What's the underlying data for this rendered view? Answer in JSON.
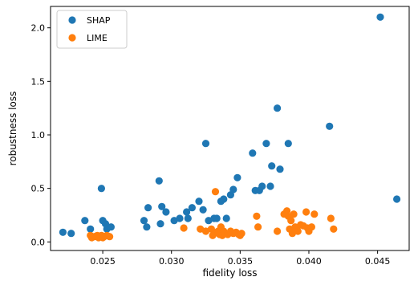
{
  "chart_data": {
    "type": "scatter",
    "xlabel": "fidelity loss",
    "ylabel": "robustness loss",
    "xlim": [
      0.0212,
      0.0473
    ],
    "ylim": [
      -0.08,
      2.2
    ],
    "x_ticks": [
      0.025,
      0.03,
      0.035,
      0.04,
      0.045
    ],
    "x_tick_labels": [
      "0.025",
      "0.030",
      "0.035",
      "0.040",
      "0.045"
    ],
    "y_ticks": [
      0.0,
      0.5,
      1.0,
      1.5,
      2.0
    ],
    "y_tick_labels": [
      "0.0",
      "0.5",
      "1.0",
      "1.5",
      "2.0"
    ],
    "grid": false,
    "legend_position": "top-left",
    "series": [
      {
        "name": "SHAP",
        "color": "#1f77b4",
        "points": [
          [
            0.0221,
            0.09
          ],
          [
            0.0227,
            0.08
          ],
          [
            0.0237,
            0.2
          ],
          [
            0.0241,
            0.12
          ],
          [
            0.0249,
            0.5
          ],
          [
            0.025,
            0.2
          ],
          [
            0.0252,
            0.17
          ],
          [
            0.0253,
            0.12
          ],
          [
            0.0256,
            0.14
          ],
          [
            0.028,
            0.2
          ],
          [
            0.0282,
            0.14
          ],
          [
            0.0283,
            0.32
          ],
          [
            0.0291,
            0.57
          ],
          [
            0.0292,
            0.17
          ],
          [
            0.0293,
            0.33
          ],
          [
            0.0296,
            0.28
          ],
          [
            0.0302,
            0.2
          ],
          [
            0.0306,
            0.22
          ],
          [
            0.0311,
            0.28
          ],
          [
            0.0312,
            0.22
          ],
          [
            0.0315,
            0.32
          ],
          [
            0.032,
            0.38
          ],
          [
            0.0323,
            0.3
          ],
          [
            0.0325,
            0.92
          ],
          [
            0.0327,
            0.2
          ],
          [
            0.0331,
            0.22
          ],
          [
            0.0333,
            0.22
          ],
          [
            0.0336,
            0.38
          ],
          [
            0.0338,
            0.4
          ],
          [
            0.034,
            0.22
          ],
          [
            0.0343,
            0.44
          ],
          [
            0.0345,
            0.49
          ],
          [
            0.0348,
            0.6
          ],
          [
            0.0359,
            0.83
          ],
          [
            0.0361,
            0.48
          ],
          [
            0.0364,
            0.48
          ],
          [
            0.0366,
            0.52
          ],
          [
            0.0369,
            0.92
          ],
          [
            0.0372,
            0.52
          ],
          [
            0.0373,
            0.71
          ],
          [
            0.0377,
            1.25
          ],
          [
            0.0379,
            0.68
          ],
          [
            0.0385,
            0.92
          ],
          [
            0.0415,
            1.08
          ],
          [
            0.0452,
            2.1
          ],
          [
            0.0464,
            0.4
          ]
        ]
      },
      {
        "name": "LIME",
        "color": "#ff7f0e",
        "points": [
          [
            0.0241,
            0.06
          ],
          [
            0.0242,
            0.04
          ],
          [
            0.0244,
            0.05
          ],
          [
            0.0246,
            0.06
          ],
          [
            0.0247,
            0.04
          ],
          [
            0.0248,
            0.05
          ],
          [
            0.0249,
            0.06
          ],
          [
            0.025,
            0.04
          ],
          [
            0.0251,
            0.05
          ],
          [
            0.0253,
            0.06
          ],
          [
            0.0255,
            0.05
          ],
          [
            0.0309,
            0.13
          ],
          [
            0.0321,
            0.12
          ],
          [
            0.0325,
            0.1
          ],
          [
            0.0329,
            0.12
          ],
          [
            0.033,
            0.06
          ],
          [
            0.0332,
            0.47
          ],
          [
            0.0333,
            0.09
          ],
          [
            0.0334,
            0.1
          ],
          [
            0.0335,
            0.07
          ],
          [
            0.0336,
            0.14
          ],
          [
            0.0337,
            0.06
          ],
          [
            0.0338,
            0.1
          ],
          [
            0.0339,
            0.08
          ],
          [
            0.0341,
            0.07
          ],
          [
            0.0343,
            0.1
          ],
          [
            0.0345,
            0.08
          ],
          [
            0.0347,
            0.09
          ],
          [
            0.0349,
            0.07
          ],
          [
            0.035,
            0.06
          ],
          [
            0.0351,
            0.08
          ],
          [
            0.0362,
            0.24
          ],
          [
            0.0363,
            0.14
          ],
          [
            0.0377,
            0.1
          ],
          [
            0.0382,
            0.26
          ],
          [
            0.0384,
            0.29
          ],
          [
            0.0385,
            0.24
          ],
          [
            0.0386,
            0.12
          ],
          [
            0.0387,
            0.2
          ],
          [
            0.0388,
            0.08
          ],
          [
            0.0389,
            0.26
          ],
          [
            0.039,
            0.14
          ],
          [
            0.0392,
            0.1
          ],
          [
            0.0394,
            0.16
          ],
          [
            0.0396,
            0.15
          ],
          [
            0.0398,
            0.28
          ],
          [
            0.0399,
            0.13
          ],
          [
            0.04,
            0.1
          ],
          [
            0.0402,
            0.14
          ],
          [
            0.0404,
            0.26
          ],
          [
            0.0416,
            0.22
          ],
          [
            0.0418,
            0.12
          ]
        ]
      }
    ]
  }
}
